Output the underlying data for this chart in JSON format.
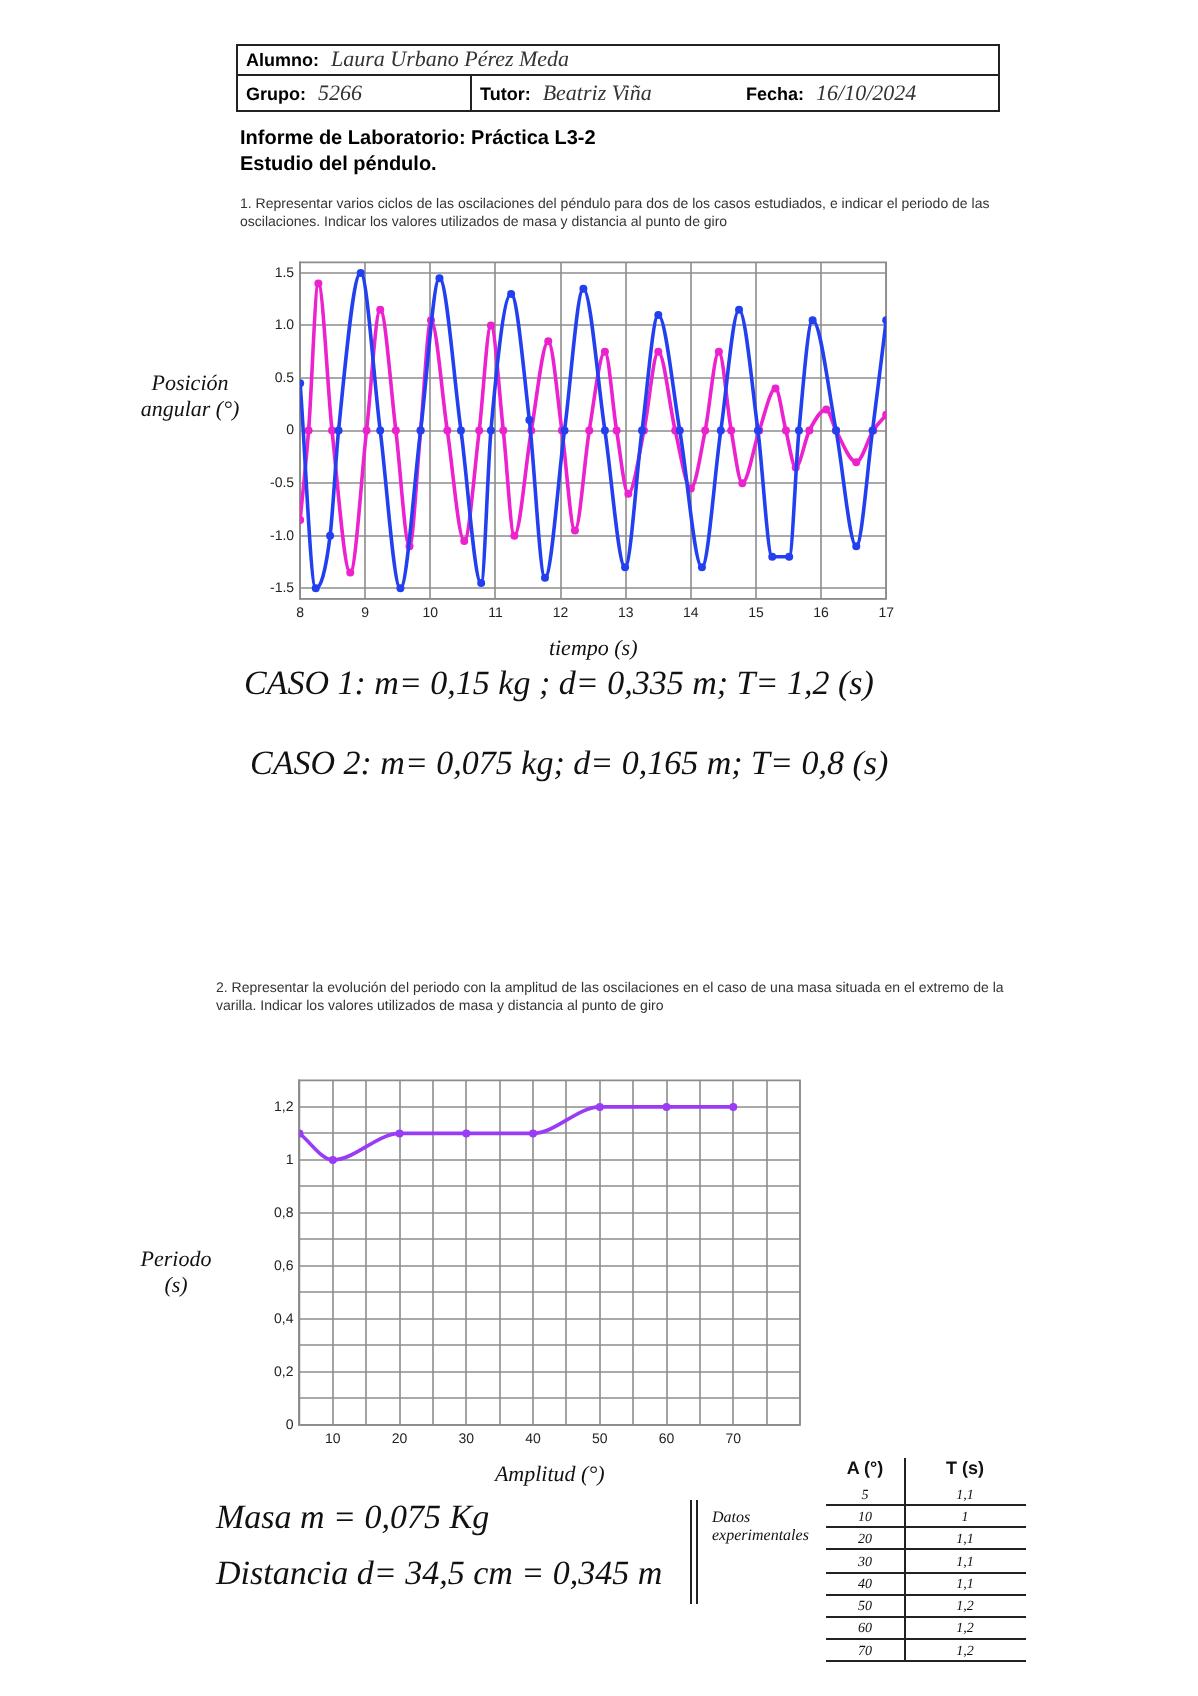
{
  "chart_data": [
    {
      "type": "other",
      "title": "Informe de Laboratorio: Práctica L3-2",
      "subtitle": "Estudio del péndulo.",
      "annotations": [
        "Alumno:",
        "Laura Urbano Pérez Meda",
        "Grupo:",
        "5266",
        "Tutor:",
        "Beatriz Viña",
        "Fecha:",
        "16/10/2024"
      ]
    },
    {
      "type": "line",
      "title": "1. Representar varios ciclos de las oscilaciones del péndulo para dos de los casos estudiados, e indicar el periodo de las oscilaciones. Indicar los valores utilizados de masa y distancia al punto de giro",
      "xlabel": "tiempo (s)",
      "ylabel": "Posición angular (°)",
      "series": [
        {
          "color": "#2340f0",
          "x": [
            8.0,
            8.24,
            8.46,
            8.59,
            8.93,
            9.23,
            9.54,
            9.85,
            10.14,
            10.47,
            10.78,
            10.93,
            11.24,
            11.52,
            11.76,
            12.06,
            12.35,
            12.68,
            12.99,
            13.25,
            13.5,
            13.83,
            14.17,
            14.46,
            14.74,
            15.03,
            15.25,
            15.51,
            15.66,
            15.87,
            16.23,
            16.54,
            16.79,
            17.0
          ],
          "values": [
            0.45,
            -1.5,
            -1.0,
            0,
            1.5,
            0,
            -1.5,
            0,
            1.45,
            0,
            -1.45,
            0,
            1.3,
            0.1,
            -1.4,
            0,
            1.35,
            0,
            -1.3,
            0,
            1.1,
            0,
            -1.3,
            0,
            1.15,
            0,
            -1.2,
            -1.2,
            0,
            1.05,
            0,
            -1.1,
            0,
            1.05
          ]
        },
        {
          "color": "#ec22cf",
          "x": [
            8.0,
            8.13,
            8.28,
            8.49,
            8.77,
            9.02,
            9.23,
            9.47,
            9.68,
            9.85,
            10.01,
            10.26,
            10.52,
            10.75,
            10.93,
            11.12,
            11.29,
            11.55,
            11.81,
            12.02,
            12.22,
            12.44,
            12.68,
            12.86,
            13.04,
            13.28,
            13.5,
            13.76,
            14.0,
            14.22,
            14.43,
            14.62,
            14.79,
            15.05,
            15.3,
            15.46,
            15.61,
            15.82,
            16.08,
            16.23,
            16.54,
            16.8,
            17.0
          ],
          "values": [
            -0.85,
            0,
            1.4,
            0,
            -1.35,
            0,
            1.15,
            0,
            -1.1,
            0,
            1.05,
            0,
            -1.05,
            0,
            1.0,
            0,
            -1.0,
            0,
            0.85,
            0,
            -0.95,
            0,
            0.75,
            0,
            -0.6,
            0,
            0.75,
            0,
            -0.55,
            0,
            0.75,
            0,
            -0.5,
            0,
            0.4,
            0,
            -0.35,
            0,
            0.2,
            0,
            -0.3,
            0,
            0.15
          ]
        }
      ],
      "xlim": [
        8,
        17
      ],
      "xticks": [
        8,
        9,
        10,
        11,
        12,
        13,
        14,
        15,
        16,
        17
      ],
      "ylim": [
        -1.6,
        1.6
      ],
      "yticks": [
        -1.5,
        {
          "value": -1,
          "label": "-1.0"
        },
        -0.5,
        0,
        0.5,
        {
          "value": 1,
          "label": "1.0"
        },
        1.5
      ],
      "grid": true,
      "marker": "circle",
      "annotations": [
        "CASO 1: m= 0,15 kg ; d= 0,335 m; T= 1,2 (s)",
        "CASO 2: m= 0,075 kg; d= 0,165 m; T= 0,8 (s)"
      ]
    },
    {
      "type": "line",
      "title": "2. Representar la evolución del periodo con la amplitud de las oscilaciones en el caso de una masa situada en el extremo de la varilla. Indicar los valores utilizados de masa y distancia al punto de giro",
      "xlabel": "Amplitud (°)",
      "ylabel": "Periodo (s)",
      "x": [
        5,
        10,
        20,
        30,
        40,
        50,
        60,
        70
      ],
      "values": [
        1.1,
        1,
        1.1,
        1.1,
        1.1,
        1.2,
        1.2,
        1.2
      ],
      "color": "#9a3cf5",
      "xlim": [
        5,
        80
      ],
      "xticks": [
        {
          "value": 5,
          "label": null
        },
        10,
        {
          "value": 15,
          "label": null
        },
        20,
        {
          "value": 25,
          "label": null
        },
        30,
        {
          "value": 35,
          "label": null
        },
        40,
        {
          "value": 45,
          "label": null
        },
        50,
        {
          "value": 55,
          "label": null
        },
        60,
        {
          "value": 65,
          "label": null
        },
        70,
        {
          "value": 75,
          "label": null
        },
        {
          "value": 80,
          "label": null
        }
      ],
      "ylim": [
        0,
        1.3
      ],
      "yticks": [
        0,
        {
          "value": 0.1,
          "label": null
        },
        {
          "value": 0.2,
          "label": "0,2"
        },
        {
          "value": 0.3,
          "label": null
        },
        {
          "value": 0.4,
          "label": "0,4"
        },
        {
          "value": 0.5,
          "label": null
        },
        {
          "value": 0.6,
          "label": "0,6"
        },
        {
          "value": 0.7,
          "label": null
        },
        {
          "value": 0.8,
          "label": "0,8"
        },
        {
          "value": 0.9,
          "label": null
        },
        1,
        {
          "value": 1.1,
          "label": null
        },
        {
          "value": 1.2,
          "label": "1,2"
        }
      ],
      "grid": true,
      "marker": "circle",
      "annotations": [
        "Masa  m = 0,075 Kg",
        "Distancia d= 34,5 cm = 0,345 m"
      ]
    },
    {
      "type": "heatmap",
      "title": "Datos experimentales",
      "ylabel": "A (°)",
      "categories": [
        "T (s)"
      ],
      "y_categories": [
        "5",
        "10",
        "20",
        "30",
        "40",
        "50",
        "60",
        "70"
      ],
      "cells": [
        [
          null
        ],
        [
          null
        ],
        [
          null
        ],
        [
          null
        ],
        [
          null
        ],
        [
          null
        ],
        [
          null
        ],
        [
          null
        ]
      ],
      "cell_labels": [
        [
          "1,1"
        ],
        [
          "1"
        ],
        [
          "1,1"
        ],
        [
          "1,1"
        ],
        [
          "1,1"
        ],
        [
          "1,2"
        ],
        [
          "1,2"
        ],
        [
          "1,2"
        ]
      ]
    }
  ]
}
